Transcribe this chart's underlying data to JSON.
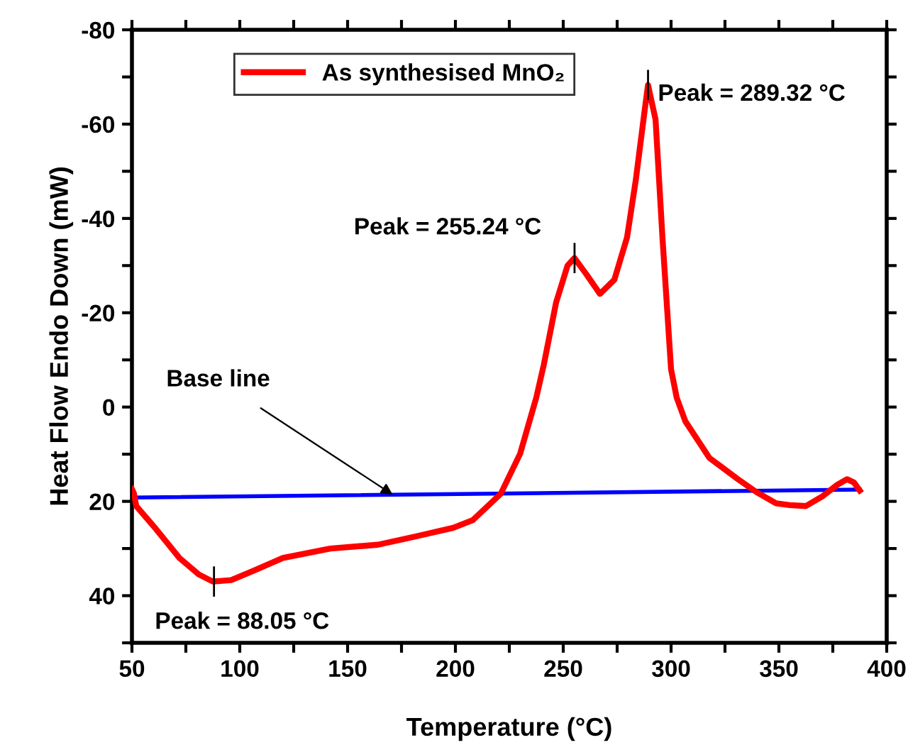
{
  "chart_data": {
    "type": "line",
    "xlabel": "Temperature (°C)",
    "ylabel": "Heat Flow Endo Down (mW)",
    "series": [
      {
        "name": "As synthesised MnO₂",
        "color": "#ff0000",
        "x": [
          50,
          50.9,
          52,
          61.2,
          72,
          81,
          87.5,
          96,
          107,
          120,
          142,
          164,
          182,
          199,
          208,
          221,
          230,
          237.5,
          241,
          246.7,
          252,
          255.2,
          260.5,
          267,
          273.7,
          279.6,
          283.6,
          287.5,
          289.3,
          292.8,
          296,
          300,
          302.6,
          306.6,
          317.8,
          331,
          339.5,
          348.7,
          355,
          362.5,
          370,
          377,
          381.6,
          384.8,
          387.5
        ],
        "values": [
          17.4,
          18.3,
          21,
          25.9,
          32,
          35.5,
          37,
          36.7,
          34.6,
          32,
          30,
          29.2,
          27.4,
          25.6,
          24,
          18.4,
          9.9,
          -2,
          -9,
          -22.2,
          -30,
          -31.6,
          -28.3,
          -24,
          -27,
          -36,
          -48,
          -62,
          -68.3,
          -61,
          -36,
          -8,
          -2,
          3,
          10.8,
          15.3,
          18,
          20.4,
          20.8,
          21,
          19,
          16.5,
          15.3,
          16,
          17.7
        ]
      },
      {
        "color": "#0000ff",
        "x": [
          50,
          387.5
        ],
        "values": [
          19.2,
          17.5
        ]
      }
    ],
    "xlim": [
      50,
      400
    ],
    "xticks": [
      50,
      {
        "value": 75,
        "label": null
      },
      100,
      {
        "value": 125,
        "label": null
      },
      150,
      {
        "value": 175,
        "label": null
      },
      200,
      {
        "value": 225,
        "label": null
      },
      250,
      {
        "value": 275,
        "label": null
      },
      300,
      {
        "value": 325,
        "label": null
      },
      350,
      {
        "value": 375,
        "label": null
      },
      400
    ],
    "ylim": [
      50,
      -80
    ],
    "yticks": [
      -80,
      {
        "value": -70,
        "label": null
      },
      -60,
      {
        "value": -50,
        "label": null
      },
      -40,
      {
        "value": -30,
        "label": null
      },
      -20,
      {
        "value": -10,
        "label": null
      },
      0,
      {
        "value": 10,
        "label": null
      },
      20,
      {
        "value": 30,
        "label": null
      },
      40,
      {
        "value": 50,
        "label": null
      }
    ],
    "annotations": [
      {
        "text": "Peak = 88.05 °C",
        "x": 88.05,
        "y": 37
      },
      {
        "text": "Peak = 255.24 °C",
        "x": 255.24,
        "y": -31.6
      },
      {
        "text": "Peak = 289.32 °C",
        "x": 289.32,
        "y": -68.3
      },
      {
        "text": "Base line",
        "x": 171,
        "y": 18.6
      }
    ],
    "legend": "top left",
    "grid": false,
    "marker": "none",
    "line_style": "solid"
  }
}
